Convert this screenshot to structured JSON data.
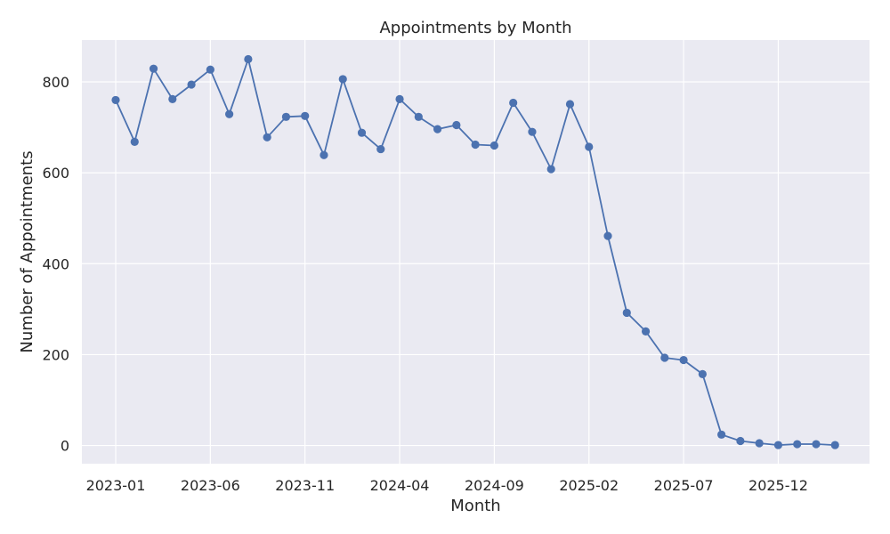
{
  "chart_data": {
    "type": "line",
    "title": "Appointments by Month",
    "xlabel": "Month",
    "ylabel": "Number of Appointments",
    "x": [
      "2023-01",
      "2023-02",
      "2023-03",
      "2023-04",
      "2023-05",
      "2023-06",
      "2023-07",
      "2023-08",
      "2023-09",
      "2023-10",
      "2023-11",
      "2023-12",
      "2024-01",
      "2024-02",
      "2024-03",
      "2024-04",
      "2024-05",
      "2024-06",
      "2024-07",
      "2024-08",
      "2024-09",
      "2024-10",
      "2024-11",
      "2024-12",
      "2025-01",
      "2025-02",
      "2025-03",
      "2025-04",
      "2025-05",
      "2025-06",
      "2025-07",
      "2025-08",
      "2025-09",
      "2025-10",
      "2025-11",
      "2025-12",
      "2026-01",
      "2026-02",
      "2026-03"
    ],
    "series": [
      {
        "values": [
          760,
          668,
          829,
          762,
          794,
          827,
          729,
          850,
          678,
          723,
          725,
          639,
          806,
          688,
          652,
          762,
          723,
          696,
          705,
          662,
          660,
          754,
          690,
          608,
          751,
          657,
          461,
          292,
          251,
          193,
          188,
          157,
          24,
          10,
          5,
          1,
          3,
          3,
          1
        ]
      }
    ],
    "x_ticks": [
      "2023-01",
      "2023-06",
      "2023-11",
      "2024-04",
      "2024-09",
      "2025-02",
      "2025-07",
      "2025-12"
    ],
    "y_ticks": [
      0,
      200,
      400,
      600,
      800
    ],
    "ylim": [
      -40,
      892
    ],
    "grid": true,
    "colors": {
      "line": "#4c72b0",
      "background": "#eaeaf2",
      "grid": "#ffffff"
    }
  }
}
